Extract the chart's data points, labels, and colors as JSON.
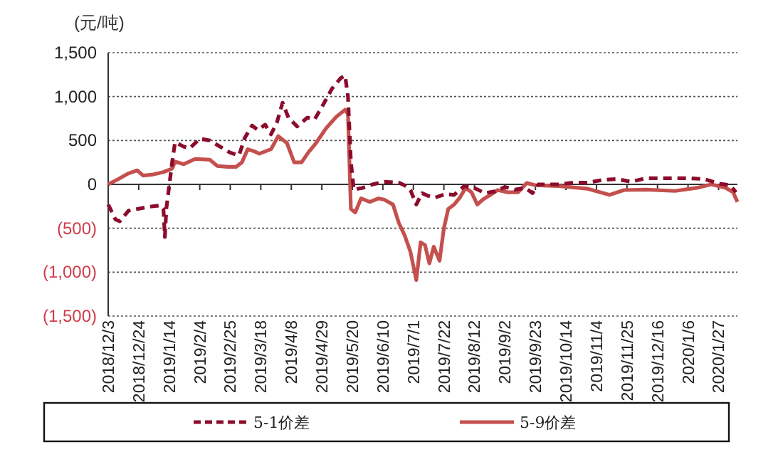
{
  "chart_data": {
    "type": "line",
    "ylabel": "(元/吨)",
    "xlim": [
      "2018-12-03",
      "2020-02-09"
    ],
    "xticks": [
      {
        "value": "2018-12-03",
        "label": "2018/12/3"
      },
      {
        "value": "2018-12-24",
        "label": "2018/12/24"
      },
      {
        "value": "2019-01-14",
        "label": "2019/1/14"
      },
      {
        "value": "2019-02-04",
        "label": "2019/2/4"
      },
      {
        "value": "2019-02-25",
        "label": "2019/2/25"
      },
      {
        "value": "2019-03-18",
        "label": "2019/3/18"
      },
      {
        "value": "2019-04-08",
        "label": "2019/4/8"
      },
      {
        "value": "2019-04-29",
        "label": "2019/4/29"
      },
      {
        "value": "2019-05-20",
        "label": "2019/5/20"
      },
      {
        "value": "2019-06-10",
        "label": "2019/6/10"
      },
      {
        "value": "2019-07-01",
        "label": "2019/7/1"
      },
      {
        "value": "2019-07-22",
        "label": "2019/7/22"
      },
      {
        "value": "2019-08-12",
        "label": "2019/8/12"
      },
      {
        "value": "2019-09-02",
        "label": "2019/9/2"
      },
      {
        "value": "2019-09-23",
        "label": "2019/9/23"
      },
      {
        "value": "2019-10-14",
        "label": "2019/10/14"
      },
      {
        "value": "2019-11-04",
        "label": "2019/11/4"
      },
      {
        "value": "2019-11-25",
        "label": "2019/11/25"
      },
      {
        "value": "2019-12-16",
        "label": "2019/12/16"
      },
      {
        "value": "2020-01-06",
        "label": "2020/1/6"
      },
      {
        "value": "2020-01-27",
        "label": "2020/1/27"
      }
    ],
    "ylim": [
      -1500,
      1500
    ],
    "yticks": [
      {
        "value": -1500,
        "label": "(1,500)"
      },
      {
        "value": -1000,
        "label": "(1,000)"
      },
      {
        "value": -500,
        "label": "(500)"
      },
      0,
      {
        "value": 500,
        "label": "500"
      },
      {
        "value": 1000,
        "label": "1,000"
      },
      {
        "value": 1500,
        "label": "1,500"
      }
    ],
    "grid": "y",
    "legend": "bottom",
    "series": [
      {
        "name": "5-1价差",
        "color": "#8b0c2c",
        "line_style": "dashed",
        "x": [
          "2018-12-03",
          "2018-12-08",
          "2018-12-11",
          "2018-12-17",
          "2018-12-31",
          "2019-01-08",
          "2019-01-10",
          "2019-01-11",
          "2019-01-12",
          "2019-01-16",
          "2019-01-18",
          "2019-01-24",
          "2019-01-28",
          "2019-02-04",
          "2019-02-11",
          "2019-02-18",
          "2019-02-25",
          "2019-03-03",
          "2019-03-07",
          "2019-03-12",
          "2019-03-16",
          "2019-03-21",
          "2019-03-25",
          "2019-03-29",
          "2019-04-02",
          "2019-04-06",
          "2019-04-12",
          "2019-04-19",
          "2019-04-24",
          "2019-04-29",
          "2019-05-06",
          "2019-05-12",
          "2019-05-15",
          "2019-05-17",
          "2019-05-19",
          "2019-05-21",
          "2019-05-27",
          "2019-06-03",
          "2019-06-11",
          "2019-06-21",
          "2019-06-26",
          "2019-06-29",
          "2019-07-03",
          "2019-07-07",
          "2019-07-11",
          "2019-07-16",
          "2019-07-23",
          "2019-07-29",
          "2019-08-05",
          "2019-08-12",
          "2019-08-19",
          "2019-08-26",
          "2019-09-02",
          "2019-09-09",
          "2019-09-16",
          "2019-09-21",
          "2019-09-25",
          "2019-10-09",
          "2019-10-19",
          "2019-10-29",
          "2019-11-08",
          "2019-11-18",
          "2019-11-28",
          "2019-12-08",
          "2019-12-23",
          "2020-01-07",
          "2020-01-17",
          "2020-01-27",
          "2020-02-04",
          "2020-02-08"
        ],
        "values": [
          -230,
          -400,
          -420,
          -300,
          -255,
          -240,
          -280,
          -600,
          -280,
          250,
          480,
          430,
          410,
          520,
          500,
          430,
          360,
          330,
          530,
          670,
          620,
          680,
          570,
          700,
          930,
          760,
          660,
          760,
          740,
          880,
          1090,
          1210,
          1240,
          1000,
          260,
          -60,
          -40,
          0,
          30,
          20,
          -20,
          -65,
          -230,
          -100,
          -130,
          -150,
          -110,
          -120,
          -20,
          -40,
          -100,
          -80,
          -30,
          -60,
          -40,
          -100,
          0,
          0,
          20,
          20,
          50,
          60,
          30,
          70,
          70,
          70,
          60,
          10,
          -10,
          -90
        ]
      },
      {
        "name": "5-9价差",
        "color": "#c4504e",
        "line_style": "solid",
        "x": [
          "2018-12-03",
          "2018-12-10",
          "2018-12-17",
          "2018-12-23",
          "2018-12-27",
          "2019-01-02",
          "2019-01-10",
          "2019-01-16",
          "2019-01-18",
          "2019-01-24",
          "2019-02-01",
          "2019-02-11",
          "2019-02-16",
          "2019-02-23",
          "2019-03-01",
          "2019-03-05",
          "2019-03-09",
          "2019-03-13",
          "2019-03-17",
          "2019-03-25",
          "2019-03-30",
          "2019-04-05",
          "2019-04-10",
          "2019-04-15",
          "2019-04-20",
          "2019-04-25",
          "2019-05-02",
          "2019-05-09",
          "2019-05-15",
          "2019-05-17",
          "2019-05-19",
          "2019-05-22",
          "2019-05-26",
          "2019-06-01",
          "2019-06-07",
          "2019-06-11",
          "2019-06-17",
          "2019-06-21",
          "2019-06-25",
          "2019-06-29",
          "2019-07-03",
          "2019-07-06",
          "2019-07-09",
          "2019-07-12",
          "2019-07-15",
          "2019-07-19",
          "2019-07-22",
          "2019-07-25",
          "2019-07-29",
          "2019-08-02",
          "2019-08-06",
          "2019-08-10",
          "2019-08-14",
          "2019-08-18",
          "2019-08-23",
          "2019-08-28",
          "2019-09-04",
          "2019-09-11",
          "2019-09-17",
          "2019-09-23",
          "2019-10-09",
          "2019-10-29",
          "2019-11-13",
          "2019-11-23",
          "2019-12-08",
          "2019-12-28",
          "2020-01-12",
          "2020-01-22",
          "2020-02-01",
          "2020-02-06",
          "2020-02-09"
        ],
        "values": [
          0,
          60,
          125,
          160,
          100,
          110,
          140,
          180,
          260,
          230,
          290,
          280,
          210,
          200,
          200,
          250,
          400,
          380,
          350,
          400,
          550,
          470,
          250,
          250,
          370,
          470,
          640,
          770,
          850,
          800,
          -280,
          -320,
          -160,
          -200,
          -160,
          -175,
          -230,
          -440,
          -580,
          -770,
          -1090,
          -660,
          -690,
          -900,
          -710,
          -870,
          -500,
          -280,
          -230,
          -150,
          -40,
          -90,
          -230,
          -170,
          -120,
          -65,
          -90,
          -90,
          15,
          -10,
          -20,
          -50,
          -120,
          -65,
          -60,
          -75,
          -40,
          0,
          -40,
          -90,
          -200
        ]
      }
    ]
  }
}
